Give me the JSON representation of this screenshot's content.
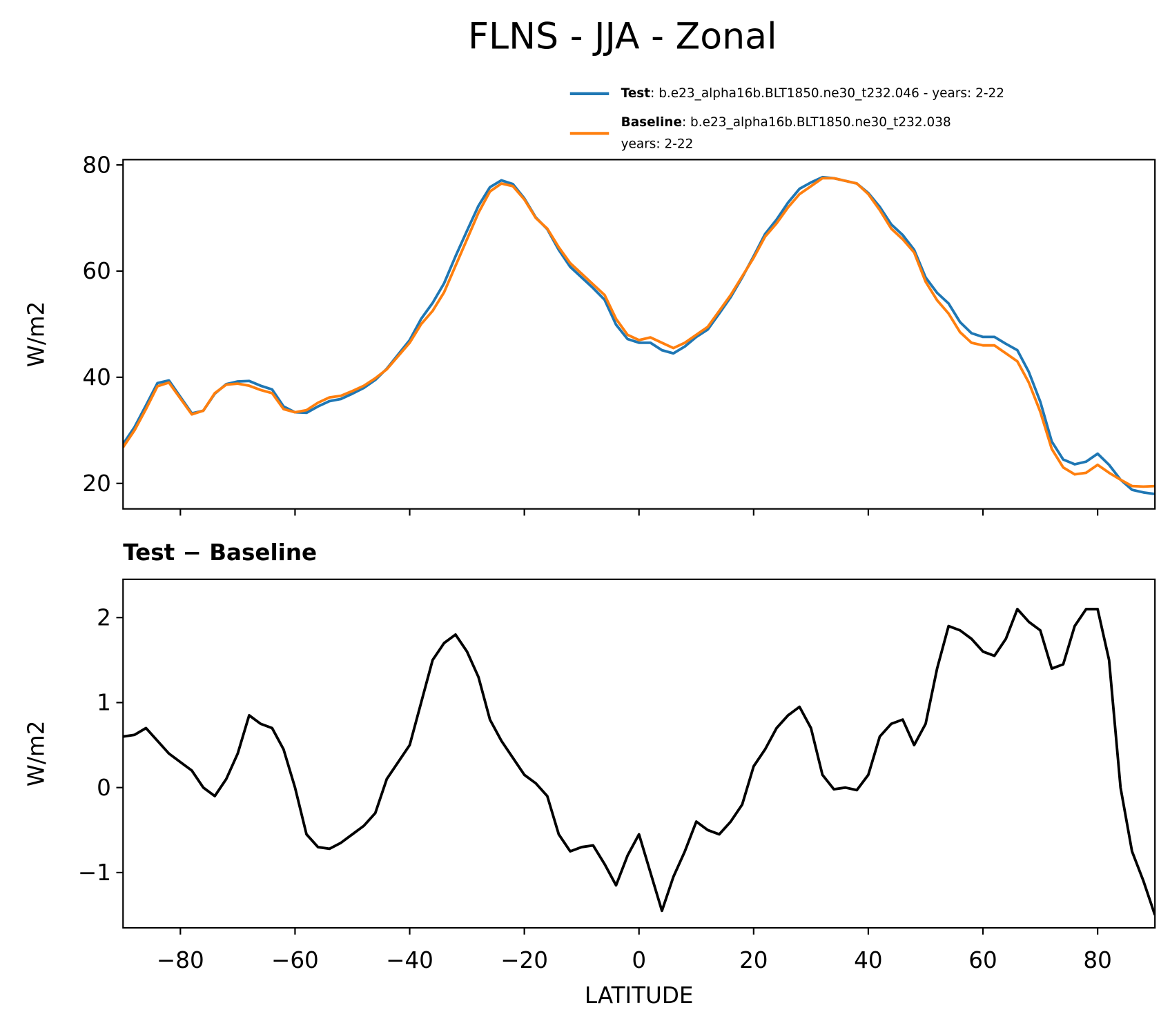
{
  "title": "FLNS - JJA - Zonal",
  "chart_data": [
    {
      "type": "line",
      "ylabel": "W/m2",
      "x": [
        -90,
        -88,
        -86,
        -84,
        -82,
        -80,
        -78,
        -76,
        -74,
        -72,
        -70,
        -68,
        -66,
        -64,
        -62,
        -60,
        -58,
        -56,
        -54,
        -52,
        -50,
        -48,
        -46,
        -44,
        -42,
        -40,
        -38,
        -36,
        -34,
        -32,
        -30,
        -28,
        -26,
        -24,
        -22,
        -20,
        -18,
        -16,
        -14,
        -12,
        -10,
        -8,
        -6,
        -4,
        -2,
        0,
        2,
        4,
        6,
        8,
        10,
        12,
        14,
        16,
        18,
        20,
        22,
        24,
        26,
        28,
        30,
        32,
        34,
        36,
        38,
        40,
        42,
        44,
        46,
        48,
        50,
        52,
        54,
        56,
        58,
        60,
        62,
        64,
        66,
        68,
        70,
        72,
        74,
        76,
        78,
        80,
        82,
        84,
        86,
        88,
        90
      ],
      "series": [
        {
          "name": "Test",
          "description": [
            ": b.e23_alpha16b.BLT1850.ne30_t232.046 - years: 2-22"
          ],
          "color": "#1f77b4",
          "values": [
            27.4,
            30.6,
            34.7,
            38.9,
            39.4,
            36.3,
            33.2,
            33.7,
            36.9,
            38.7,
            39.2,
            39.3,
            38.4,
            37.7,
            34.5,
            33.4,
            33.3,
            34.5,
            35.5,
            35.9,
            36.9,
            38.0,
            39.5,
            41.6,
            44.3,
            47.0,
            51.0,
            54.0,
            57.7,
            62.8,
            67.6,
            72.3,
            75.8,
            77.1,
            76.4,
            73.7,
            70.1,
            67.9,
            64.0,
            60.8,
            58.8,
            56.8,
            54.6,
            49.9,
            47.2,
            46.5,
            46.5,
            45.1,
            44.5,
            45.8,
            47.6,
            49.0,
            52.0,
            55.1,
            58.8,
            62.8,
            67.0,
            69.7,
            72.9,
            75.5,
            76.7,
            77.7,
            77.5,
            77.0,
            76.5,
            74.7,
            72.1,
            68.8,
            66.8,
            64.0,
            58.8,
            55.9,
            53.9,
            50.4,
            48.3,
            47.6,
            47.6,
            46.3,
            45.1,
            41.0,
            35.4,
            27.9,
            24.5,
            23.6,
            24.1,
            25.6,
            23.5,
            20.7,
            18.8,
            18.3,
            18.0
          ]
        },
        {
          "name": "Baseline",
          "description": [
            ": b.e23_alpha16b.BLT1850.ne30_t232.038",
            "years: 2-22"
          ],
          "color": "#ff7f0e",
          "values": [
            26.8,
            30,
            34,
            38.3,
            39,
            36,
            33,
            33.7,
            37,
            38.6,
            38.8,
            38.4,
            37.6,
            37,
            34,
            33.4,
            33.8,
            35.2,
            36.2,
            36.5,
            37.4,
            38.4,
            39.8,
            41.5,
            44,
            46.5,
            50,
            52.5,
            56,
            61,
            66,
            71,
            75,
            76.5,
            76,
            73.5,
            70,
            68,
            64.5,
            61.5,
            59.5,
            57.5,
            55.5,
            51,
            48,
            47,
            47.5,
            46.5,
            45.5,
            46.5,
            48,
            49.5,
            52.5,
            55.5,
            59,
            62.5,
            66.5,
            69,
            72,
            74.5,
            76,
            77.5,
            77.5,
            77,
            76.5,
            74.5,
            71.5,
            68,
            66,
            63.5,
            58,
            54.5,
            52,
            48.5,
            46.5,
            46,
            46,
            44.5,
            43,
            39,
            33.5,
            26.5,
            23,
            21.7,
            22,
            23.5,
            22,
            20.7,
            19.5,
            19.4,
            19.5
          ]
        }
      ],
      "xlim": [
        -90,
        90
      ],
      "xticks": [
        -80,
        -60,
        -40,
        -20,
        0,
        20,
        40,
        60,
        80
      ],
      "ylim": [
        15.2,
        81
      ],
      "yticks": [
        20,
        40,
        60,
        80
      ]
    },
    {
      "type": "line",
      "title": "Test − Baseline",
      "xlabel": "LATITUDE",
      "ylabel": "W/m2",
      "x": [
        -90,
        -88,
        -86,
        -84,
        -82,
        -80,
        -78,
        -76,
        -74,
        -72,
        -70,
        -68,
        -66,
        -64,
        -62,
        -60,
        -58,
        -56,
        -54,
        -52,
        -50,
        -48,
        -46,
        -44,
        -42,
        -40,
        -38,
        -36,
        -34,
        -32,
        -30,
        -28,
        -26,
        -24,
        -22,
        -20,
        -18,
        -16,
        -14,
        -12,
        -10,
        -8,
        -6,
        -4,
        -2,
        0,
        2,
        4,
        6,
        8,
        10,
        12,
        14,
        16,
        18,
        20,
        22,
        24,
        26,
        28,
        30,
        32,
        34,
        36,
        38,
        40,
        42,
        44,
        46,
        48,
        50,
        52,
        54,
        56,
        58,
        60,
        62,
        64,
        66,
        68,
        70,
        72,
        74,
        76,
        78,
        80,
        82,
        84,
        86,
        88,
        90
      ],
      "series": [
        {
          "color": "#000000",
          "values": [
            0.6,
            0.62,
            0.7,
            0.55,
            0.4,
            0.3,
            0.2,
            0.0,
            -0.1,
            0.1,
            0.4,
            0.85,
            0.75,
            0.7,
            0.45,
            0.0,
            -0.55,
            -0.7,
            -0.72,
            -0.65,
            -0.55,
            -0.45,
            -0.3,
            0.1,
            0.3,
            0.5,
            1.0,
            1.5,
            1.7,
            1.8,
            1.6,
            1.3,
            0.8,
            0.55,
            0.35,
            0.15,
            0.05,
            -0.1,
            -0.55,
            -0.75,
            -0.7,
            -0.68,
            -0.9,
            -1.15,
            -0.8,
            -0.55,
            -1.0,
            -1.45,
            -1.05,
            -0.75,
            -0.4,
            -0.5,
            -0.55,
            -0.4,
            -0.2,
            0.25,
            0.45,
            0.7,
            0.85,
            0.95,
            0.7,
            0.15,
            -0.02,
            0.0,
            -0.03,
            0.15,
            0.6,
            0.75,
            0.8,
            0.5,
            0.75,
            1.4,
            1.9,
            1.85,
            1.75,
            1.6,
            1.55,
            1.75,
            2.1,
            1.95,
            1.85,
            1.4,
            1.45,
            1.9,
            2.1,
            2.1,
            1.5,
            0.0,
            -0.75,
            -1.1,
            -1.5
          ]
        }
      ],
      "xlim": [
        -90,
        90
      ],
      "xticks": [
        {
          "value": -80,
          "label": "−80"
        },
        {
          "value": -60,
          "label": "−60"
        },
        {
          "value": -40,
          "label": "−40"
        },
        {
          "value": -20,
          "label": "−20"
        },
        0,
        20,
        40,
        60,
        80
      ],
      "ylim": [
        -1.65,
        2.45
      ],
      "yticks": [
        {
          "value": -1,
          "label": "−1"
        },
        0,
        1,
        2
      ]
    }
  ]
}
